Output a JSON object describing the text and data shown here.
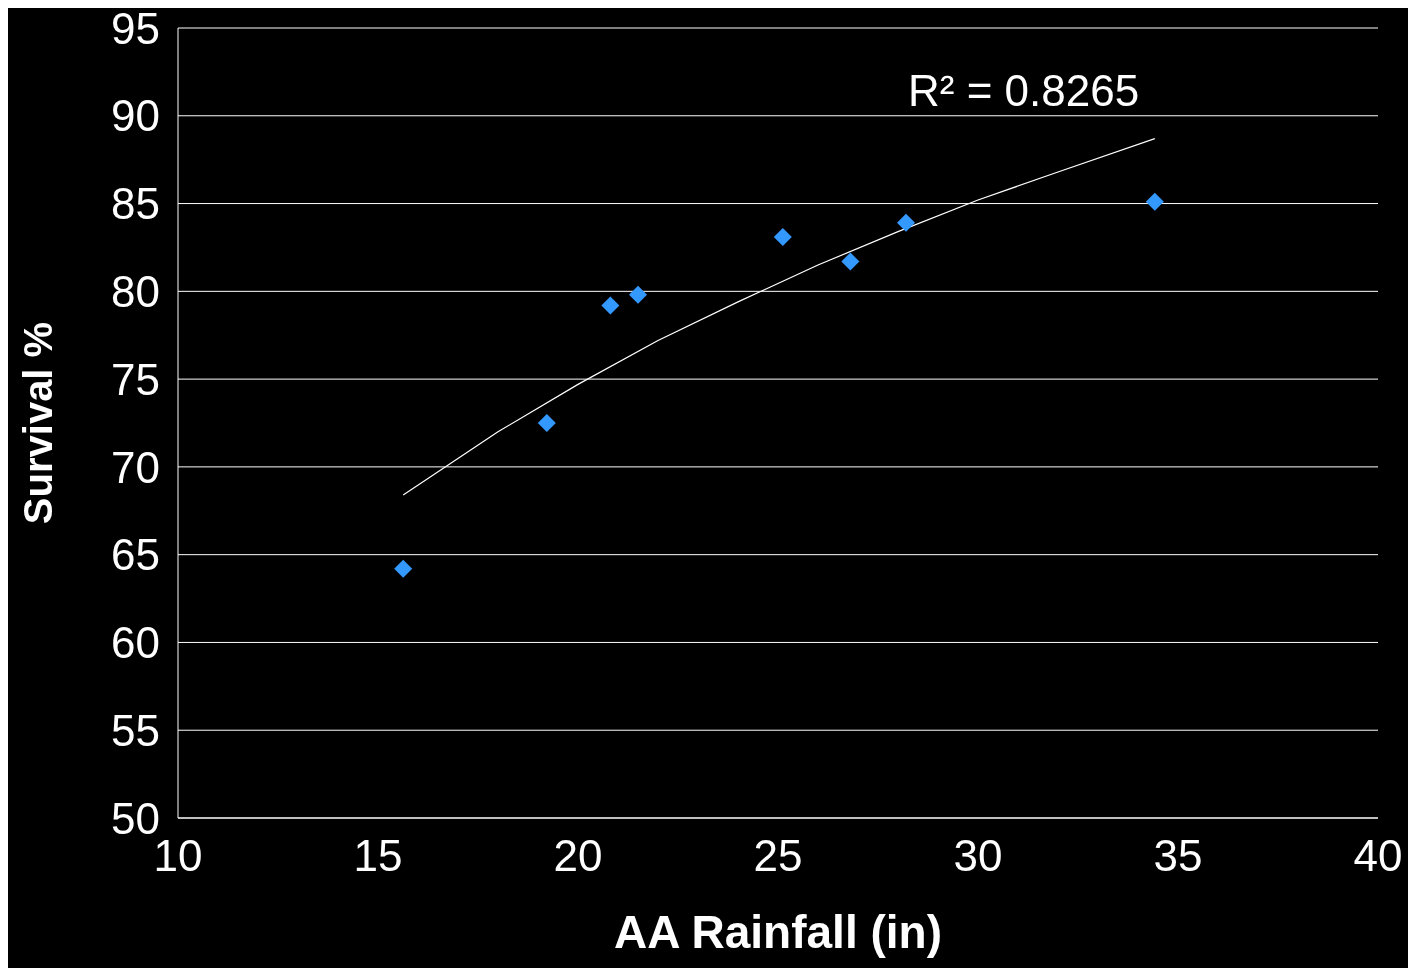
{
  "chart_data": {
    "type": "scatter",
    "xlabel": "AA Rainfall (in)",
    "ylabel": "Survival %",
    "annotations": [
      "R² = 0.8265"
    ],
    "xlim": [
      10,
      40
    ],
    "xticks": [
      10,
      15,
      20,
      25,
      30,
      35,
      40
    ],
    "ylim": [
      50,
      95
    ],
    "yticks": [
      50,
      55,
      60,
      65,
      70,
      75,
      80,
      85,
      90,
      95
    ],
    "grid": "y",
    "marker": "diamond",
    "series": [
      {
        "color": "#3399ff",
        "x": [
          15.63,
          19.22,
          20.81,
          21.5,
          25.12,
          26.81,
          28.2,
          34.42
        ],
        "values": [
          64.2,
          72.5,
          79.2,
          79.8,
          83.1,
          81.7,
          83.9,
          85.1
        ]
      },
      {
        "type": "line",
        "color": "#ffffff",
        "marker": "none",
        "line_style": "solid",
        "x": [
          15.63,
          18,
          20,
          22,
          24,
          26,
          28,
          30,
          32,
          34.42
        ],
        "values": [
          68.4,
          72.0,
          74.7,
          77.2,
          79.4,
          81.5,
          83.4,
          85.2,
          86.8,
          88.7
        ]
      }
    ]
  }
}
